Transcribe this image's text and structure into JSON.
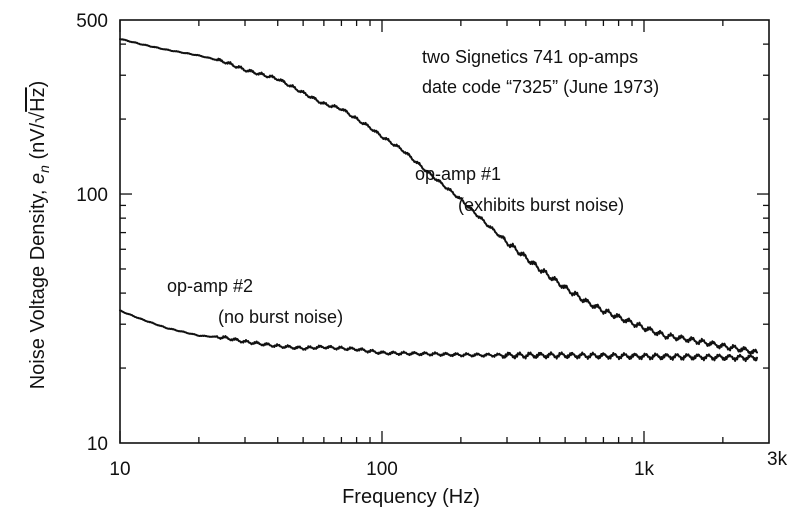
{
  "chart_data": {
    "type": "line",
    "xscale": "log",
    "yscale": "log",
    "xlim": [
      10,
      3000
    ],
    "ylim": [
      10,
      500
    ],
    "grid": false,
    "xlabel": "Frequency (Hz)",
    "ylabel_prefix": "Noise Voltage Density, ",
    "ylabel_symbol": "e",
    "ylabel_sub": "n",
    "ylabel_unit_open": " (nV/",
    "ylabel_unit_sqrt": "√",
    "ylabel_unit_hz": "Hz",
    "ylabel_unit_close": ")",
    "x_ticks": [
      {
        "value": 10,
        "label": "10"
      },
      {
        "value": 100,
        "label": "100"
      },
      {
        "value": 1000,
        "label": "1k"
      },
      {
        "value": 3000,
        "label": "3k"
      }
    ],
    "y_ticks": [
      {
        "value": 10,
        "label": "10"
      },
      {
        "value": 100,
        "label": "100"
      },
      {
        "value": 500,
        "label": "500"
      }
    ],
    "annotations": {
      "info_line1": "two Signetics 741 op-amps",
      "info_line2": "date code “7325” (June 1973)",
      "s1_line1": "op-amp #1",
      "s1_line2": "(exhibits burst noise)",
      "s2_line1": "op-amp #2",
      "s2_line2": "(no burst noise)"
    },
    "series": [
      {
        "name": "op-amp #1",
        "x": [
          10,
          12,
          15,
          20,
          25,
          30,
          40,
          50,
          60,
          70,
          80,
          90,
          100,
          120,
          150,
          200,
          250,
          300,
          400,
          500,
          600,
          700,
          800,
          1000,
          1200,
          1500,
          2000,
          2500,
          2700
        ],
        "y": [
          420,
          400,
          380,
          360,
          340,
          315,
          290,
          255,
          230,
          220,
          200,
          185,
          170,
          150,
          122,
          95,
          76,
          64,
          50,
          42,
          37,
          34,
          32,
          29,
          27,
          26,
          24.5,
          23.5,
          23
        ]
      },
      {
        "name": "op-amp #2",
        "x": [
          10,
          12,
          15,
          20,
          25,
          30,
          40,
          50,
          60,
          70,
          80,
          100,
          150,
          200,
          300,
          500,
          700,
          1000,
          1500,
          2000,
          2500,
          2700
        ],
        "y": [
          34,
          31.5,
          29,
          27,
          26.5,
          25.5,
          24.5,
          24,
          24.3,
          24,
          23.8,
          23,
          22.8,
          22.6,
          22.5,
          22.5,
          22.4,
          22.3,
          22.2,
          22.1,
          22,
          22
        ]
      }
    ]
  }
}
